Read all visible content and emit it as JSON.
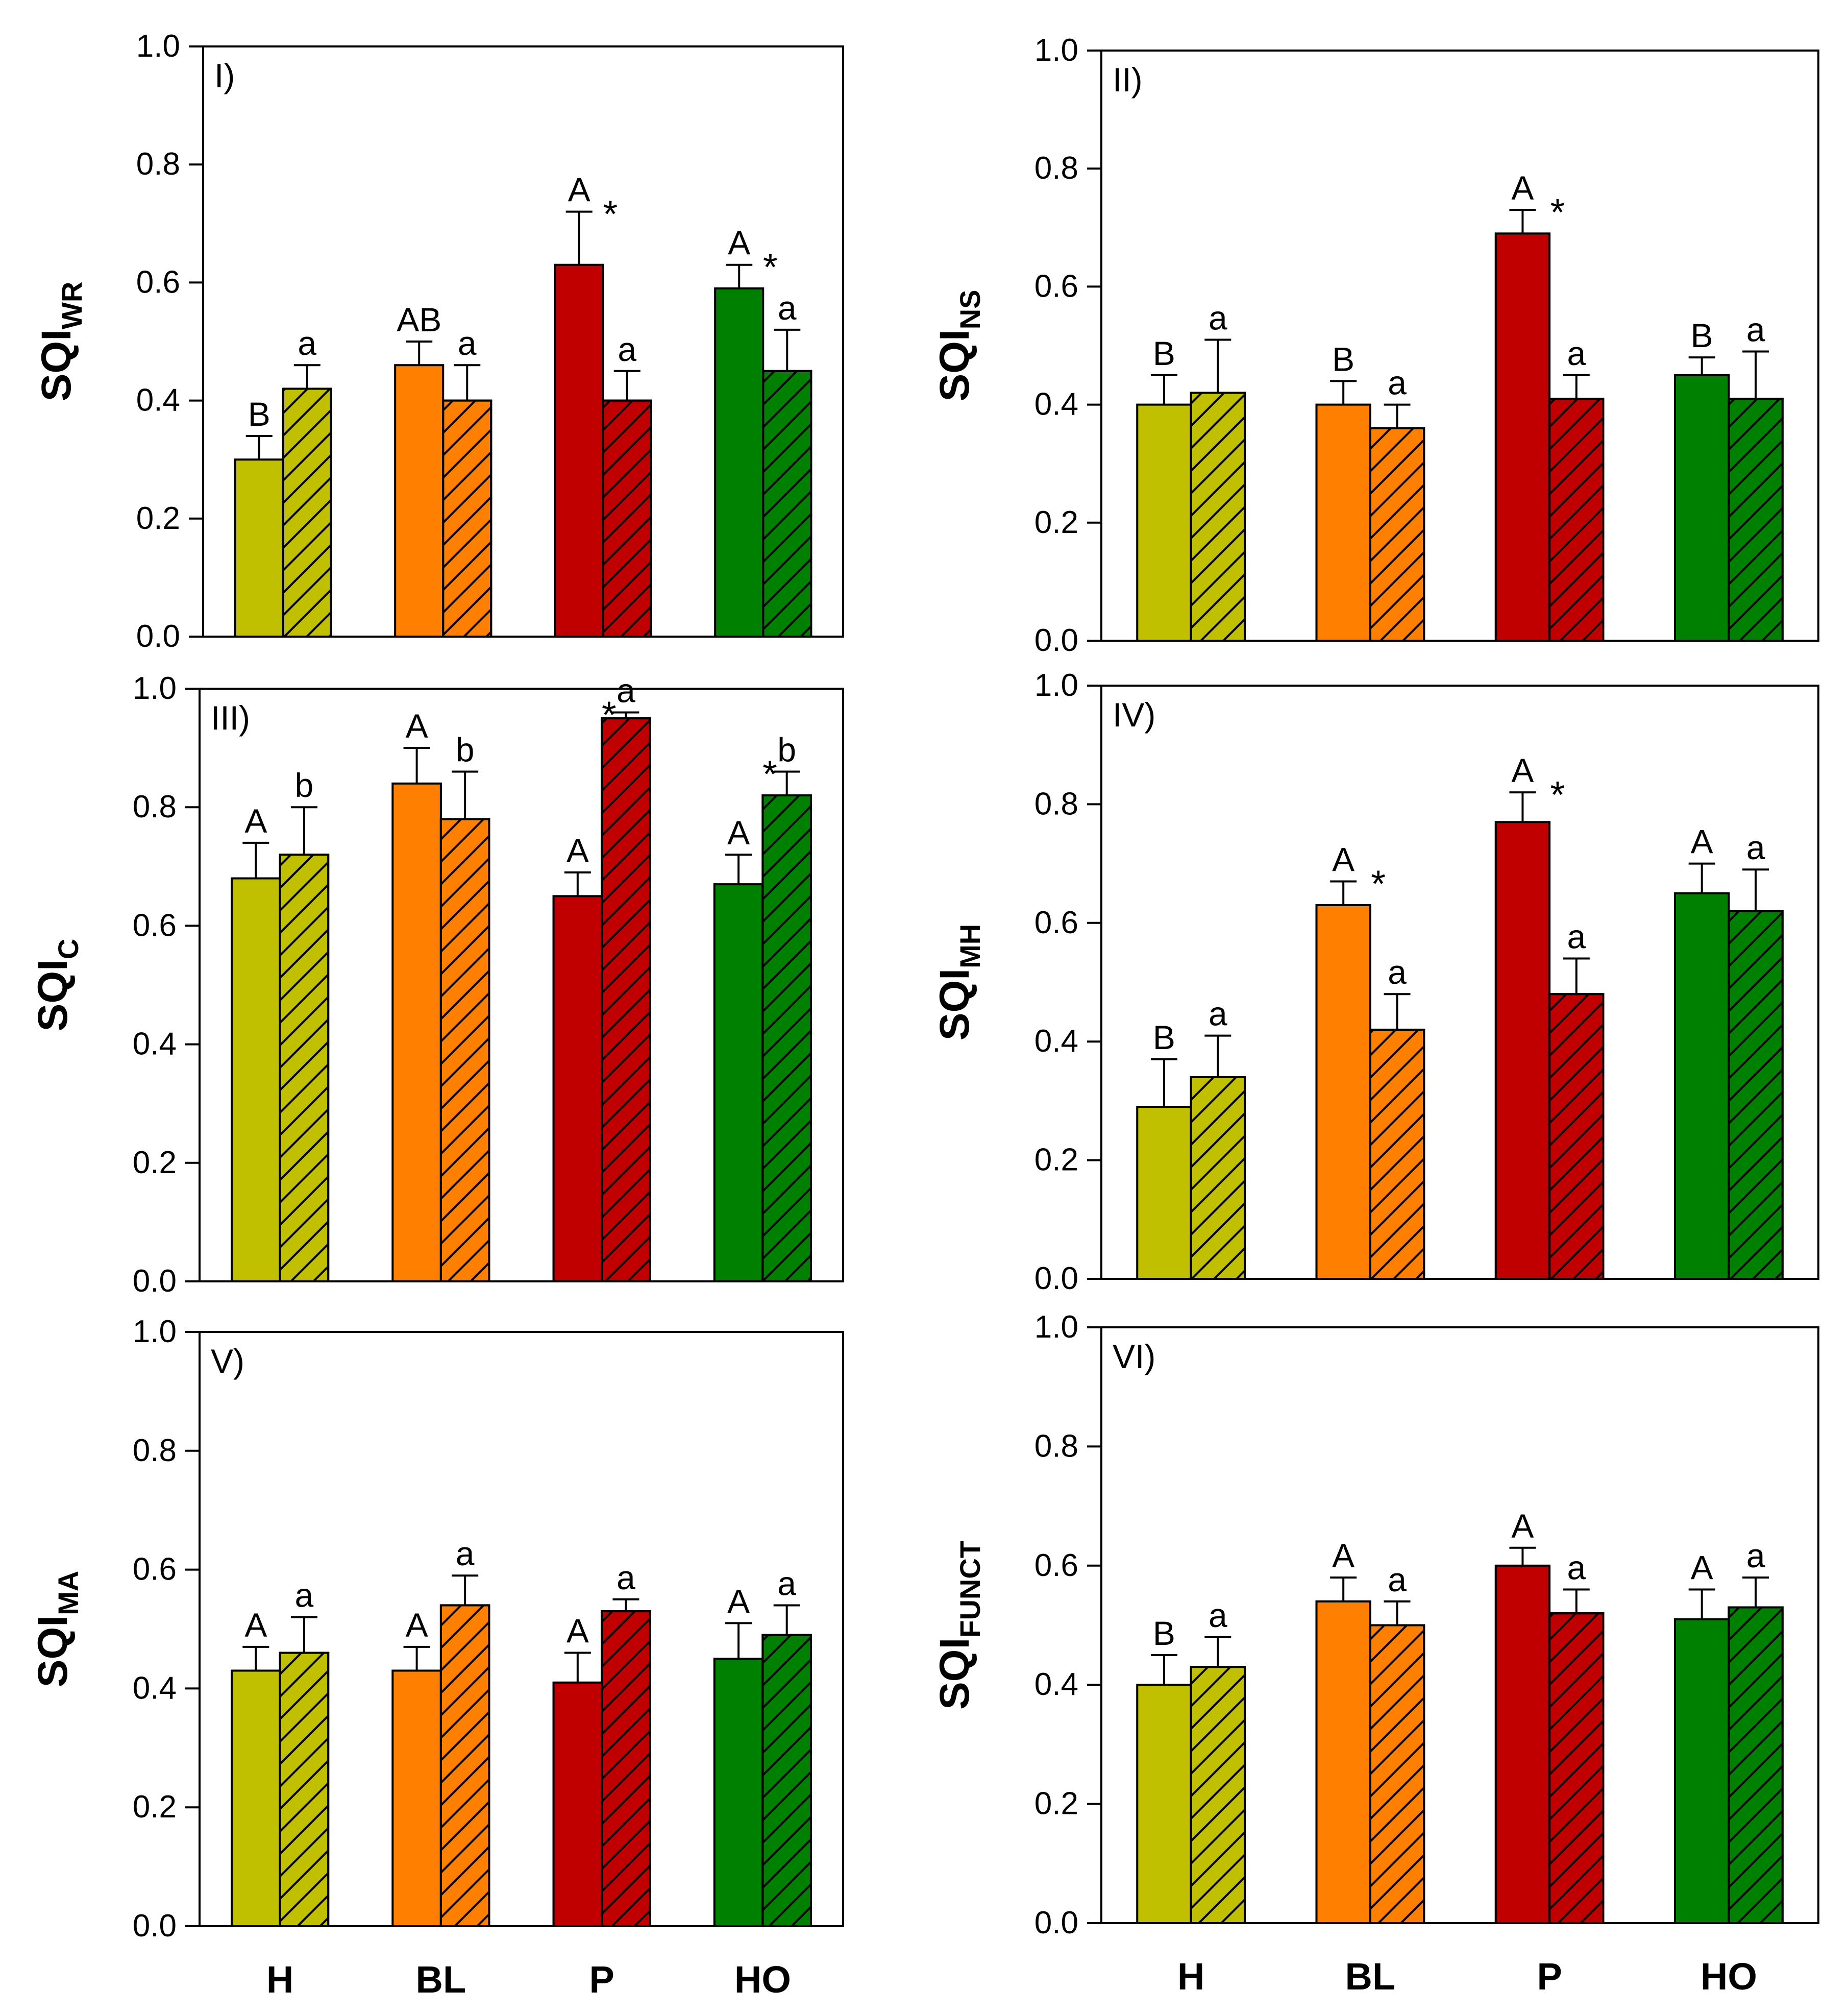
{
  "colors": {
    "H": "#c0c000",
    "BL": "#ff8000",
    "P": "#c00000",
    "HO": "#008000",
    "axis": "#000000",
    "hatch": "#000000"
  },
  "chart_data": [
    {
      "type": "bar",
      "panel_label": "I)",
      "ylabel_main": "SQI",
      "ylabel_sub": "WR",
      "ylim": [
        0,
        1
      ],
      "yticks": [
        "0.0",
        "0.2",
        "0.4",
        "0.6",
        "0.8",
        "1.0"
      ],
      "categories": [
        "H",
        "BL",
        "P",
        "HO"
      ],
      "series": [
        {
          "name": "solid",
          "values": [
            0.3,
            0.46,
            0.63,
            0.59
          ],
          "errors": [
            0.04,
            0.04,
            0.09,
            0.04
          ],
          "letters": [
            "B",
            "AB",
            "A",
            "A"
          ]
        },
        {
          "name": "hatched",
          "values": [
            0.42,
            0.4,
            0.4,
            0.45
          ],
          "errors": [
            0.04,
            0.06,
            0.05,
            0.07
          ],
          "letters": [
            "a",
            "a",
            "a",
            "a"
          ]
        }
      ],
      "stars": [
        "",
        "",
        "*",
        "*"
      ]
    },
    {
      "type": "bar",
      "panel_label": "II)",
      "ylabel_main": "SQI",
      "ylabel_sub": "NS",
      "ylim": [
        0,
        1
      ],
      "yticks": [
        "0.0",
        "0.2",
        "0.4",
        "0.6",
        "0.8",
        "1.0"
      ],
      "categories": [
        "H",
        "BL",
        "P",
        "HO"
      ],
      "series": [
        {
          "name": "solid",
          "values": [
            0.4,
            0.4,
            0.69,
            0.45
          ],
          "errors": [
            0.05,
            0.04,
            0.04,
            0.03
          ],
          "letters": [
            "B",
            "B",
            "A",
            "B"
          ]
        },
        {
          "name": "hatched",
          "values": [
            0.42,
            0.36,
            0.41,
            0.41
          ],
          "errors": [
            0.09,
            0.04,
            0.04,
            0.08
          ],
          "letters": [
            "a",
            "a",
            "a",
            "a"
          ]
        }
      ],
      "stars": [
        "",
        "",
        "*",
        ""
      ]
    },
    {
      "type": "bar",
      "panel_label": "III)",
      "ylabel_main": "SQI",
      "ylabel_sub": "C",
      "ylim": [
        0,
        1
      ],
      "yticks": [
        "0.0",
        "0.2",
        "0.4",
        "0.6",
        "0.8",
        "1.0"
      ],
      "categories": [
        "H",
        "BL",
        "P",
        "HO"
      ],
      "series": [
        {
          "name": "solid",
          "values": [
            0.68,
            0.84,
            0.65,
            0.67
          ],
          "errors": [
            0.06,
            0.06,
            0.04,
            0.05
          ],
          "letters": [
            "A",
            "A",
            "A",
            "A"
          ]
        },
        {
          "name": "hatched",
          "values": [
            0.72,
            0.78,
            0.95,
            0.82
          ],
          "errors": [
            0.08,
            0.08,
            0.01,
            0.04
          ],
          "letters": [
            "b",
            "b",
            "a",
            "b"
          ]
        }
      ],
      "stars": [
        "",
        "",
        "*",
        "*"
      ]
    },
    {
      "type": "bar",
      "panel_label": "IV)",
      "ylabel_main": "SQI",
      "ylabel_sub": "MH",
      "ylim": [
        0,
        1
      ],
      "yticks": [
        "0.0",
        "0.2",
        "0.4",
        "0.6",
        "0.8",
        "1.0"
      ],
      "categories": [
        "H",
        "BL",
        "P",
        "HO"
      ],
      "series": [
        {
          "name": "solid",
          "values": [
            0.29,
            0.63,
            0.77,
            0.65
          ],
          "errors": [
            0.08,
            0.04,
            0.05,
            0.05
          ],
          "letters": [
            "B",
            "A",
            "A",
            "A"
          ]
        },
        {
          "name": "hatched",
          "values": [
            0.34,
            0.42,
            0.48,
            0.62
          ],
          "errors": [
            0.07,
            0.06,
            0.06,
            0.07
          ],
          "letters": [
            "a",
            "a",
            "a",
            "a"
          ]
        }
      ],
      "stars": [
        "",
        "*",
        "*",
        ""
      ]
    },
    {
      "type": "bar",
      "panel_label": "V)",
      "ylabel_main": "SQI",
      "ylabel_sub": "MA",
      "ylim": [
        0,
        1
      ],
      "yticks": [
        "0.0",
        "0.2",
        "0.4",
        "0.6",
        "0.8",
        "1.0"
      ],
      "categories": [
        "H",
        "BL",
        "P",
        "HO"
      ],
      "series": [
        {
          "name": "solid",
          "values": [
            0.43,
            0.43,
            0.41,
            0.45
          ],
          "errors": [
            0.04,
            0.04,
            0.05,
            0.06
          ],
          "letters": [
            "A",
            "A",
            "A",
            "A"
          ]
        },
        {
          "name": "hatched",
          "values": [
            0.46,
            0.54,
            0.53,
            0.49
          ],
          "errors": [
            0.06,
            0.05,
            0.02,
            0.05
          ],
          "letters": [
            "a",
            "a",
            "a",
            "a"
          ]
        }
      ],
      "stars": [
        "",
        "",
        "",
        ""
      ]
    },
    {
      "type": "bar",
      "panel_label": "VI)",
      "ylabel_main": "SQI",
      "ylabel_sub": "FUNCT",
      "ylim": [
        0,
        1
      ],
      "yticks": [
        "0.0",
        "0.2",
        "0.4",
        "0.6",
        "0.8",
        "1.0"
      ],
      "categories": [
        "H",
        "BL",
        "P",
        "HO"
      ],
      "series": [
        {
          "name": "solid",
          "values": [
            0.4,
            0.54,
            0.6,
            0.51
          ],
          "errors": [
            0.05,
            0.04,
            0.03,
            0.05
          ],
          "letters": [
            "B",
            "A",
            "A",
            "A"
          ]
        },
        {
          "name": "hatched",
          "values": [
            0.43,
            0.5,
            0.52,
            0.53
          ],
          "errors": [
            0.05,
            0.04,
            0.04,
            0.05
          ],
          "letters": [
            "a",
            "a",
            "a",
            "a"
          ]
        }
      ],
      "stars": [
        "",
        "",
        "",
        ""
      ]
    }
  ],
  "x_labels": [
    "H",
    "BL",
    "P",
    "HO"
  ]
}
